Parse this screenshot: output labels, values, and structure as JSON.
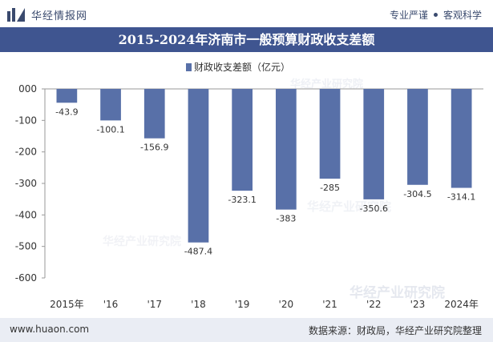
{
  "brand": {
    "name": "华经情报网"
  },
  "slogan": {
    "left": "专业严谨",
    "right": "客观科学"
  },
  "footer": {
    "site": "www.huaon.com",
    "source": "数据来源：财政局，华经产业研究院整理"
  },
  "watermark": "华经产业研究院",
  "colors": {
    "bar": "#5870a8",
    "title_bg": "#3f5590",
    "footer_bg": "#eaedf4"
  },
  "chart_data": {
    "type": "bar",
    "title": "2015-2024年济南市一般预算财政收支差额",
    "xlabel": "",
    "ylabel": "",
    "categories": [
      "2015年",
      "'16",
      "'17",
      "'18",
      "'19",
      "'20",
      "'21",
      "'22",
      "'23",
      "2024年"
    ],
    "series": [
      {
        "name": "财政收支差额（亿元）",
        "values": [
          -43.9,
          -100.1,
          -156.9,
          -487.4,
          -323.1,
          -383,
          -285,
          -350.6,
          -304.5,
          -314.1
        ]
      }
    ],
    "data_labels": [
      "-43.9",
      "-100.1",
      "-156.9",
      "-487.4",
      "-323.1",
      "-383",
      "-285",
      "-350.6",
      "-304.5",
      "-314.1"
    ],
    "ylim": [
      -600,
      0
    ],
    "yticks": [
      0,
      -100,
      -200,
      -300,
      -400,
      -500,
      -600
    ],
    "ytick_labels": [
      "000",
      "-100",
      "-200",
      "-300",
      "-400",
      "-500",
      "-600"
    ],
    "legend_position": "top-center",
    "grid": false
  }
}
